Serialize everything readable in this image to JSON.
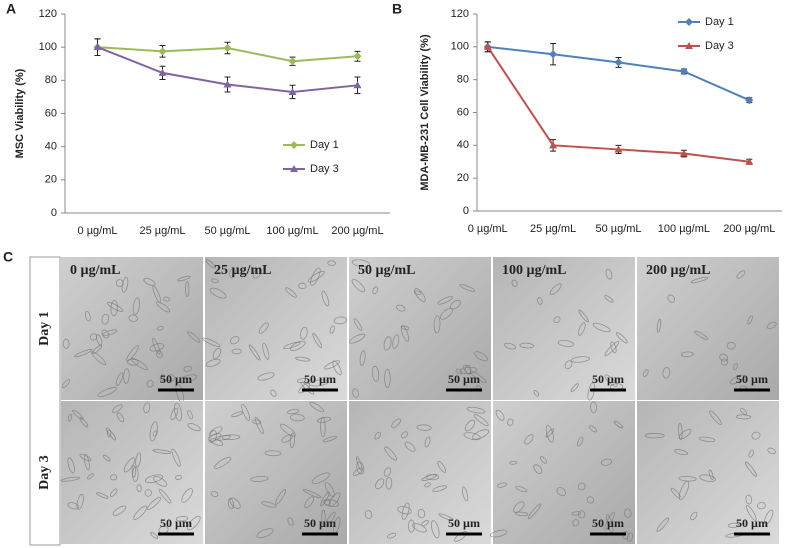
{
  "chart_data": [
    {
      "type": "line",
      "panel": "A",
      "ylabel": "MSC Viability (%)",
      "categories": [
        "0 µg/mL",
        "25 µg/mL",
        "50 µg/mL",
        "100 µg/mL",
        "200 µg/mL"
      ],
      "ylim": [
        0,
        120
      ],
      "yticks": [
        0,
        20,
        40,
        60,
        80,
        100,
        120
      ],
      "legend": "right",
      "series": [
        {
          "name": "Day 1",
          "color": "#9bbb59",
          "marker": "diamond",
          "values": [
            100,
            97.5,
            99.5,
            91.5,
            94.5
          ],
          "errors": [
            5,
            3.5,
            3.5,
            2.5,
            3
          ]
        },
        {
          "name": "Day 3",
          "color": "#8064a2",
          "marker": "triangle",
          "values": [
            100,
            84.5,
            77.5,
            73,
            77
          ],
          "errors": [
            5,
            4,
            4.5,
            4,
            5
          ]
        }
      ]
    },
    {
      "type": "line",
      "panel": "B",
      "ylabel": "MDA-MB-231 Cell Viability (%)",
      "categories": [
        "0 µg/mL",
        "25 µg/mL",
        "50 µg/mL",
        "100 µg/mL",
        "200 µg/mL"
      ],
      "ylim": [
        0,
        120
      ],
      "yticks": [
        0,
        20,
        40,
        60,
        80,
        100,
        120
      ],
      "legend": "upper right",
      "series": [
        {
          "name": "Day 1",
          "color": "#4f81bd",
          "marker": "diamond",
          "values": [
            100,
            95.5,
            90.5,
            85,
            67.5
          ],
          "errors": [
            3,
            6.5,
            3,
            1.5,
            1.5
          ]
        },
        {
          "name": "Day 3",
          "color": "#c0504d",
          "marker": "triangle",
          "values": [
            100,
            40,
            37.5,
            35,
            30
          ],
          "errors": [
            3,
            3.5,
            2.5,
            2,
            1.5
          ]
        }
      ]
    }
  ],
  "panel_c": {
    "label": "C",
    "rows": [
      "Day 1",
      "Day 3"
    ],
    "columns": [
      "0 µg/mL",
      "25 µg/mL",
      "50 µg/mL",
      "100 µg/mL",
      "200 µg/mL"
    ],
    "scale_bar": "50 µm"
  }
}
